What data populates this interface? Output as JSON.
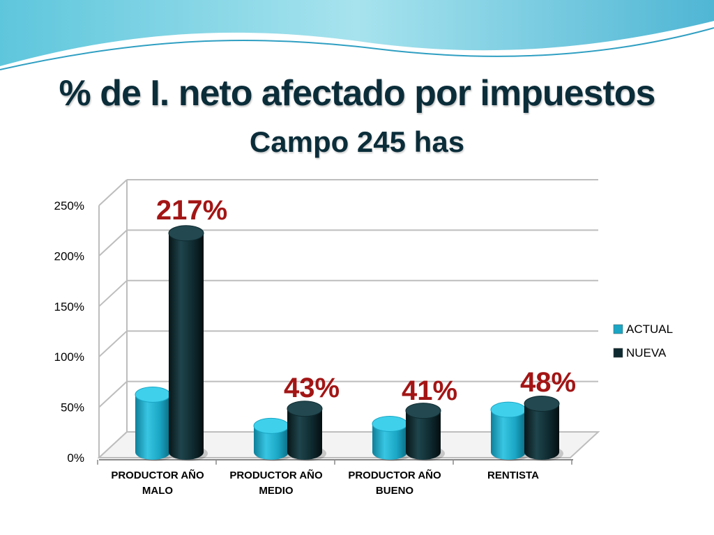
{
  "slide": {
    "title": "% de I. neto afectado por impuestos",
    "subtitle": "Campo 245 has"
  },
  "colors": {
    "actual": "#1aa6c4",
    "nueva": "#0e2a30",
    "label": "#a31515",
    "grid": "#bdbdbd"
  },
  "chart_data": {
    "type": "bar",
    "categories": [
      [
        "PRODUCTOR AÑO",
        "MALO"
      ],
      [
        "PRODUCTOR AÑO",
        "MEDIO"
      ],
      [
        "PRODUCTOR AÑO",
        "BUENO"
      ],
      [
        "RENTISTA"
      ]
    ],
    "series": [
      {
        "name": "ACTUAL",
        "values": [
          57,
          26,
          28,
          42
        ]
      },
      {
        "name": "NUEVA",
        "values": [
          217,
          43,
          41,
          48
        ]
      }
    ],
    "data_labels": [
      "217%",
      "43%",
      "41%",
      "48%"
    ],
    "y_ticks": [
      "0%",
      "50%",
      "100%",
      "150%",
      "200%",
      "250%"
    ],
    "ylim": [
      0,
      250
    ],
    "grid": true,
    "legend": "right",
    "style": "3d-cylinder"
  }
}
